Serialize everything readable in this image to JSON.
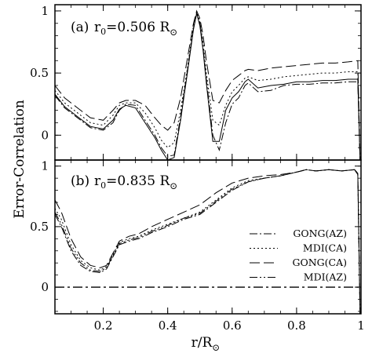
{
  "figure": {
    "ylabel": "Error-Correlation",
    "xlabel": "r/R",
    "xlabel_symbol": "⊙"
  },
  "chart_data": [
    {
      "type": "line",
      "panel_label": "(a)",
      "title_prefix": "r",
      "title_subscript": "0",
      "title_value": "=0.506 R",
      "title_symbol": "⊙",
      "xlim": [
        0.05,
        1.0
      ],
      "ylim": [
        -0.2,
        1.05
      ],
      "yticks": [
        0,
        0.5,
        1
      ],
      "ytick_labels": [
        "0",
        "0.5",
        "1"
      ],
      "xticks": [
        0.2,
        0.4,
        0.6,
        0.8,
        1.0
      ],
      "grid": false,
      "series": [
        {
          "name": "GONG(AZ)",
          "dash": "10,3,2,3",
          "x": [
            0.05,
            0.08,
            0.12,
            0.16,
            0.2,
            0.23,
            0.25,
            0.27,
            0.3,
            0.33,
            0.36,
            0.38,
            0.4,
            0.42,
            0.44,
            0.46,
            0.48,
            0.49,
            0.5,
            0.51,
            0.52,
            0.54,
            0.56,
            0.58,
            0.6,
            0.62,
            0.64,
            0.65,
            0.68,
            0.72,
            0.76,
            0.8,
            0.84,
            0.88,
            0.92,
            0.96,
            0.99,
            0.997
          ],
          "y": [
            0.32,
            0.22,
            0.14,
            0.06,
            0.04,
            0.1,
            0.2,
            0.25,
            0.24,
            0.12,
            0.0,
            -0.1,
            -0.17,
            -0.16,
            0.15,
            0.5,
            0.86,
            0.98,
            0.9,
            0.7,
            0.45,
            0.0,
            -0.12,
            0.1,
            0.25,
            0.3,
            0.4,
            0.42,
            0.35,
            0.36,
            0.4,
            0.41,
            0.41,
            0.42,
            0.42,
            0.43,
            0.43,
            -0.2
          ]
        },
        {
          "name": "MDI(CA)",
          "dash": "2,3",
          "x": [
            0.05,
            0.08,
            0.12,
            0.16,
            0.2,
            0.23,
            0.25,
            0.27,
            0.3,
            0.33,
            0.36,
            0.38,
            0.4,
            0.42,
            0.44,
            0.46,
            0.48,
            0.49,
            0.5,
            0.51,
            0.52,
            0.54,
            0.56,
            0.58,
            0.6,
            0.62,
            0.64,
            0.65,
            0.68,
            0.72,
            0.76,
            0.8,
            0.84,
            0.88,
            0.92,
            0.96,
            0.99,
            0.997
          ],
          "y": [
            0.36,
            0.26,
            0.18,
            0.1,
            0.08,
            0.16,
            0.24,
            0.26,
            0.26,
            0.18,
            0.06,
            -0.04,
            -0.1,
            -0.06,
            0.2,
            0.52,
            0.88,
            0.99,
            0.92,
            0.74,
            0.5,
            0.12,
            0.08,
            0.24,
            0.35,
            0.4,
            0.46,
            0.47,
            0.44,
            0.45,
            0.47,
            0.48,
            0.49,
            0.5,
            0.5,
            0.51,
            0.51,
            -0.2
          ]
        },
        {
          "name": "GONG(CA)",
          "dash": "13,5",
          "x": [
            0.05,
            0.08,
            0.12,
            0.16,
            0.2,
            0.23,
            0.25,
            0.27,
            0.3,
            0.33,
            0.36,
            0.38,
            0.4,
            0.42,
            0.44,
            0.46,
            0.48,
            0.49,
            0.5,
            0.51,
            0.52,
            0.54,
            0.56,
            0.58,
            0.6,
            0.62,
            0.64,
            0.65,
            0.68,
            0.72,
            0.76,
            0.8,
            0.84,
            0.88,
            0.92,
            0.96,
            0.99,
            0.997
          ],
          "y": [
            0.4,
            0.3,
            0.22,
            0.14,
            0.12,
            0.2,
            0.26,
            0.28,
            0.28,
            0.24,
            0.14,
            0.08,
            0.04,
            0.1,
            0.3,
            0.6,
            0.9,
            1.0,
            0.94,
            0.8,
            0.6,
            0.28,
            0.26,
            0.36,
            0.44,
            0.48,
            0.52,
            0.53,
            0.52,
            0.54,
            0.55,
            0.56,
            0.57,
            0.58,
            0.58,
            0.59,
            0.6,
            -0.2
          ]
        },
        {
          "name": "MDI(AZ)",
          "dash": "none",
          "x": [
            0.05,
            0.08,
            0.12,
            0.16,
            0.2,
            0.23,
            0.25,
            0.27,
            0.3,
            0.33,
            0.36,
            0.38,
            0.4,
            0.42,
            0.44,
            0.46,
            0.48,
            0.49,
            0.5,
            0.51,
            0.52,
            0.54,
            0.56,
            0.58,
            0.6,
            0.62,
            0.64,
            0.65,
            0.68,
            0.72,
            0.76,
            0.8,
            0.84,
            0.88,
            0.92,
            0.96,
            0.99,
            0.997
          ],
          "y": [
            0.33,
            0.23,
            0.15,
            0.07,
            0.05,
            0.12,
            0.21,
            0.24,
            0.22,
            0.1,
            -0.02,
            -0.12,
            -0.2,
            -0.18,
            0.12,
            0.48,
            0.85,
            0.98,
            0.88,
            0.68,
            0.42,
            -0.05,
            -0.05,
            0.2,
            0.3,
            0.35,
            0.43,
            0.45,
            0.38,
            0.4,
            0.41,
            0.43,
            0.43,
            0.44,
            0.44,
            0.45,
            0.45,
            -0.2
          ]
        }
      ]
    },
    {
      "type": "line",
      "panel_label": "(b)",
      "title_prefix": "r",
      "title_subscript": "0",
      "title_value": "=0.835 R",
      "title_symbol": "⊙",
      "xlim": [
        0.05,
        1.0
      ],
      "ylim": [
        -0.22,
        1.05
      ],
      "yticks": [
        0,
        0.5,
        1
      ],
      "ytick_labels": [
        "0",
        "0.5",
        "1"
      ],
      "xticks": [
        0.2,
        0.4,
        0.6,
        0.8,
        1.0
      ],
      "xtick_labels": [
        "0.2",
        "0.4",
        "0.6",
        "0.8",
        "1"
      ],
      "grid": false,
      "zero_line": true,
      "legend_position": "lower-right",
      "series": [
        {
          "name": "GONG(AZ)",
          "dash": "10,3,2,3",
          "x": [
            0.05,
            0.07,
            0.1,
            0.13,
            0.16,
            0.19,
            0.21,
            0.23,
            0.25,
            0.28,
            0.31,
            0.35,
            0.4,
            0.45,
            0.5,
            0.55,
            0.6,
            0.65,
            0.7,
            0.75,
            0.8,
            0.83,
            0.86,
            0.9,
            0.94,
            0.98,
            0.99,
            0.997
          ],
          "y": [
            0.6,
            0.5,
            0.3,
            0.18,
            0.13,
            0.12,
            0.15,
            0.25,
            0.35,
            0.38,
            0.4,
            0.45,
            0.5,
            0.56,
            0.6,
            0.7,
            0.8,
            0.87,
            0.9,
            0.92,
            0.95,
            0.97,
            0.96,
            0.97,
            0.96,
            0.97,
            0.93,
            -0.22
          ]
        },
        {
          "name": "MDI(CA)",
          "dash": "2,3",
          "x": [
            0.05,
            0.07,
            0.1,
            0.13,
            0.16,
            0.19,
            0.21,
            0.23,
            0.25,
            0.28,
            0.31,
            0.35,
            0.4,
            0.45,
            0.5,
            0.55,
            0.6,
            0.65,
            0.7,
            0.75,
            0.8,
            0.83,
            0.86,
            0.9,
            0.94,
            0.98,
            0.99,
            0.997
          ],
          "y": [
            0.65,
            0.56,
            0.35,
            0.22,
            0.16,
            0.14,
            0.17,
            0.27,
            0.37,
            0.4,
            0.42,
            0.47,
            0.52,
            0.57,
            0.62,
            0.72,
            0.82,
            0.88,
            0.9,
            0.92,
            0.95,
            0.97,
            0.96,
            0.97,
            0.96,
            0.97,
            0.94,
            -0.22
          ]
        },
        {
          "name": "GONG(CA)",
          "dash": "13,5",
          "x": [
            0.05,
            0.07,
            0.1,
            0.13,
            0.16,
            0.19,
            0.21,
            0.23,
            0.25,
            0.28,
            0.31,
            0.35,
            0.4,
            0.45,
            0.5,
            0.55,
            0.6,
            0.65,
            0.7,
            0.75,
            0.8,
            0.83,
            0.86,
            0.9,
            0.94,
            0.98,
            0.99,
            0.997
          ],
          "y": [
            0.72,
            0.62,
            0.4,
            0.25,
            0.18,
            0.16,
            0.18,
            0.28,
            0.38,
            0.42,
            0.44,
            0.5,
            0.56,
            0.62,
            0.68,
            0.78,
            0.86,
            0.9,
            0.92,
            0.93,
            0.95,
            0.97,
            0.96,
            0.97,
            0.96,
            0.97,
            0.94,
            -0.22
          ]
        },
        {
          "name": "MDI(AZ)",
          "dash": "10,3,2,3,2,3",
          "x": [
            0.05,
            0.07,
            0.1,
            0.13,
            0.16,
            0.19,
            0.21,
            0.23,
            0.25,
            0.28,
            0.31,
            0.35,
            0.4,
            0.45,
            0.5,
            0.55,
            0.6,
            0.65,
            0.7,
            0.75,
            0.8,
            0.83,
            0.86,
            0.9,
            0.94,
            0.98,
            0.99,
            0.997
          ],
          "y": [
            0.62,
            0.52,
            0.32,
            0.2,
            0.14,
            0.13,
            0.16,
            0.26,
            0.36,
            0.39,
            0.41,
            0.46,
            0.51,
            0.57,
            0.61,
            0.71,
            0.81,
            0.87,
            0.9,
            0.92,
            0.95,
            0.97,
            0.96,
            0.97,
            0.96,
            0.97,
            0.93,
            -0.22
          ]
        }
      ]
    }
  ]
}
